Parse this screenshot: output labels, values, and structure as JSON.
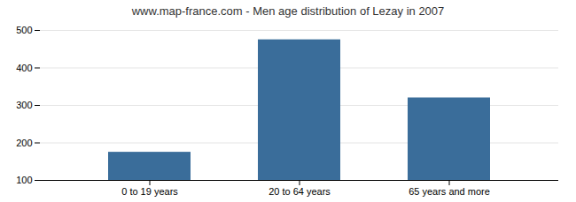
{
  "chart_data": {
    "type": "bar",
    "title": "www.map-france.com - Men age distribution of Lezay in 2007",
    "categories": [
      "0 to 19 years",
      "20 to 64 years",
      "65 years and more"
    ],
    "values": [
      175,
      475,
      320
    ],
    "color": "#3a6d9a",
    "ylim": [
      100,
      500
    ],
    "yticks": [
      100,
      200,
      300,
      400,
      500
    ],
    "grid": true
  }
}
